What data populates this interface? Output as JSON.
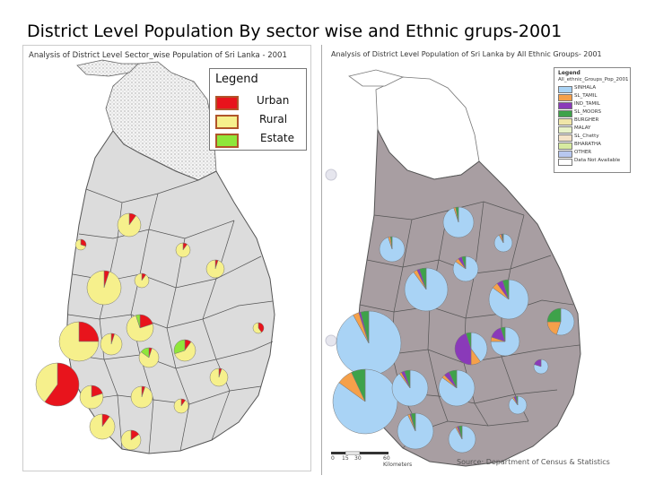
{
  "slide_title": "District Level Population By sector wise and Ethnic grups-2001",
  "left_map": {
    "title": "Analysis of District Level Sector_wise Population of Sri Lanka - 2001",
    "legend_title": "Legend",
    "legend": [
      {
        "label": "Urban",
        "color": "#e8141c"
      },
      {
        "label": "Rural",
        "color": "#f6f08c"
      },
      {
        "label": "Estate",
        "color": "#8fe63a"
      }
    ]
  },
  "right_map": {
    "title": "Analysis of District Level Population of Sri Lanka by All Ethnic Groups- 2001",
    "legend_title": "Legend",
    "legend_subtitle": "All_ethnic_Groups_Pop_2001",
    "legend": [
      {
        "label": "SINHALA",
        "color": "#a9d3f5"
      },
      {
        "label": "SL_TAMIL",
        "color": "#f5a04a"
      },
      {
        "label": "IND_TAMIL",
        "color": "#8a3ab9"
      },
      {
        "label": "SL_MOORS",
        "color": "#3ea24a"
      },
      {
        "label": "BURGHER",
        "color": "#f0e6a8"
      },
      {
        "label": "MALAY",
        "color": "#e8f2c8"
      },
      {
        "label": "SL_Chetty",
        "color": "#f5e3c8"
      },
      {
        "label": "BHARATHA",
        "color": "#d7eaa0"
      },
      {
        "label": "OTHER",
        "color": "#b8c8f0"
      },
      {
        "label": "Data Not Available",
        "color": "#ffffff"
      }
    ],
    "scale_labels": [
      "0",
      "15",
      "30",
      "60"
    ],
    "scale_unit": "Kilometers",
    "source": "Source: Department of Census & Statistics"
  }
}
